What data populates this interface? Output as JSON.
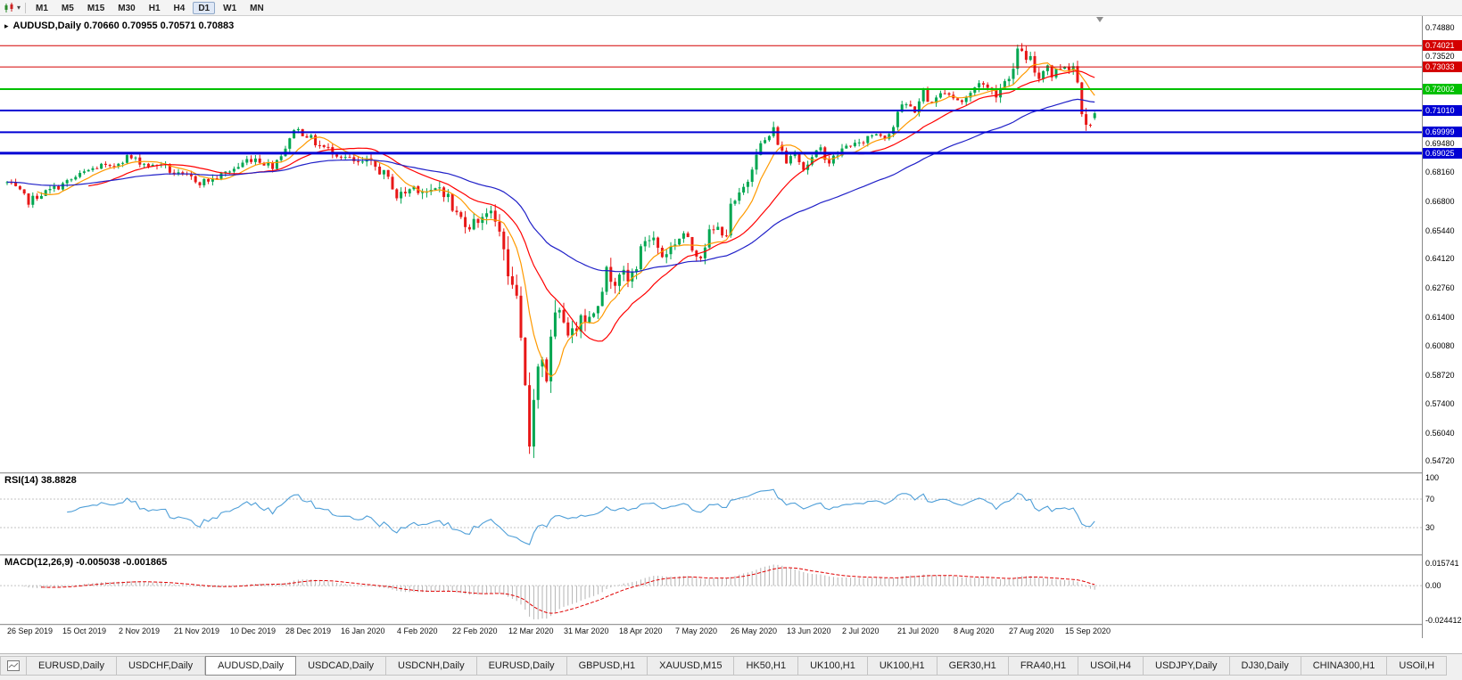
{
  "meta": {
    "colors": {
      "candle_up": "#00a650",
      "candle_down": "#e81717",
      "ma_fast": "#ff9a00",
      "ma_mid": "#ff0000",
      "ma_slow": "#2020c8",
      "rsi_line": "#4f9fd8",
      "macd_hist": "#b4b4b4",
      "macd_signal": "#e00000",
      "axis_text": "#000000"
    }
  },
  "icons": {
    "one_click_trading": "▸",
    "toolbar_caret": "▾"
  },
  "toolbar": {
    "timeframes": [
      {
        "label": "M1",
        "active": false
      },
      {
        "label": "M5",
        "active": false
      },
      {
        "label": "M15",
        "active": false
      },
      {
        "label": "M30",
        "active": false
      },
      {
        "label": "H1",
        "active": false
      },
      {
        "label": "H4",
        "active": false
      },
      {
        "label": "D1",
        "active": true
      },
      {
        "label": "W1",
        "active": false
      },
      {
        "label": "MN",
        "active": false
      }
    ]
  },
  "chart_header": {
    "text": "AUDUSD,Daily 0.70660 0.70955 0.70571 0.70883"
  },
  "price_axis": {
    "ticks": [
      {
        "label": "0.74880",
        "value": 0.7488
      },
      {
        "label": "0.73520",
        "value": 0.7352
      },
      {
        "label": "0.69480",
        "value": 0.6948
      },
      {
        "label": "0.68160",
        "value": 0.6816
      },
      {
        "label": "0.66800",
        "value": 0.668
      },
      {
        "label": "0.65440",
        "value": 0.6544
      },
      {
        "label": "0.64120",
        "value": 0.6412
      },
      {
        "label": "0.62760",
        "value": 0.6276
      },
      {
        "label": "0.61400",
        "value": 0.614
      },
      {
        "label": "0.60080",
        "value": 0.6008
      },
      {
        "label": "0.58720",
        "value": 0.5872
      },
      {
        "label": "0.57400",
        "value": 0.574
      },
      {
        "label": "0.56040",
        "value": 0.5604
      },
      {
        "label": "0.54720",
        "value": 0.5472
      }
    ]
  },
  "levels": [
    {
      "label": "0.74021",
      "price": 0.74021,
      "color": "#d40000",
      "width": 1
    },
    {
      "label": "0.73033",
      "price": 0.73033,
      "color": "#d40000",
      "width": 1
    },
    {
      "label": "0.72002",
      "price": 0.72002,
      "color": "#00c000",
      "width": 2
    },
    {
      "label": "0.71010",
      "price": 0.7101,
      "color": "#0000d4",
      "width": 2
    },
    {
      "label": "0.69999",
      "price": 0.69999,
      "color": "#0000d4",
      "width": 2
    },
    {
      "label": "0.69025",
      "price": 0.69025,
      "color": "#0000d4",
      "width": 3
    }
  ],
  "rsi": {
    "label": "RSI(14) 38.8828",
    "period": 14,
    "current": 38.8828,
    "guide_levels": [
      70,
      30
    ],
    "axis": [
      {
        "label": "100",
        "value": 100
      },
      {
        "label": "70",
        "value": 70
      },
      {
        "label": "30",
        "value": 30
      }
    ]
  },
  "macd": {
    "label": "MACD(12,26,9) -0.005038 -0.001865",
    "fast": 12,
    "slow": 26,
    "signal": 9,
    "current_macd": -0.005038,
    "current_signal": -0.001865,
    "scale_max": 0.015741,
    "scale_min": -0.024412,
    "axis": [
      {
        "label": "0.015741",
        "value": 0.015741
      },
      {
        "label": "0.00",
        "value": 0
      },
      {
        "label": "-0.024412",
        "value": -0.024412
      }
    ]
  },
  "date_axis": [
    "26 Sep 2019",
    "15 Oct 2019",
    "2 Nov 2019",
    "21 Nov 2019",
    "10 Dec 2019",
    "28 Dec 2019",
    "16 Jan 2020",
    "4 Feb 2020",
    "22 Feb 2020",
    "12 Mar 2020",
    "31 Mar 2020",
    "18 Apr 2020",
    "7 May 2020",
    "26 May 2020",
    "13 Jun 2020",
    "2 Jul 2020",
    "21 Jul 2020",
    "8 Aug 2020",
    "27 Aug 2020",
    "15 Sep 2020"
  ],
  "tabs": [
    {
      "label": "EURUSD,Daily",
      "active": false
    },
    {
      "label": "USDCHF,Daily",
      "active": false
    },
    {
      "label": "AUDUSD,Daily",
      "active": true
    },
    {
      "label": "USDCAD,Daily",
      "active": false
    },
    {
      "label": "USDCNH,Daily",
      "active": false
    },
    {
      "label": "EURUSD,Daily",
      "active": false
    },
    {
      "label": "GBPUSD,H1",
      "active": false
    },
    {
      "label": "XAUUSD,M15",
      "active": false
    },
    {
      "label": "HK50,H1",
      "active": false
    },
    {
      "label": "UK100,H1",
      "active": false
    },
    {
      "label": "UK100,H1",
      "active": false
    },
    {
      "label": "GER30,H1",
      "active": false
    },
    {
      "label": "FRA40,H1",
      "active": false
    },
    {
      "label": "USOil,H4",
      "active": false
    },
    {
      "label": "USDJPY,Daily",
      "active": false
    },
    {
      "label": "DJ30,Daily",
      "active": false
    },
    {
      "label": "CHINA300,H1",
      "active": false
    },
    {
      "label": "USOil,H",
      "active": false
    }
  ],
  "chart_data": {
    "type": "candlestick+indicators",
    "symbol": "AUDUSD",
    "timeframe": "Daily",
    "ohlc_current": {
      "open": 0.7066,
      "high": 0.70955,
      "low": 0.70571,
      "close": 0.70883
    },
    "visible_range": {
      "price_max": 0.7515,
      "price_min": 0.5445,
      "first_label": "26 Sep 2019",
      "last_label": "15 Sep 2020"
    },
    "candle_count": 255,
    "noise_seed": 7,
    "anchors": [
      [
        0,
        0.6765
      ],
      [
        2,
        0.6738
      ],
      [
        4,
        0.67
      ],
      [
        5,
        0.6678
      ],
      [
        7,
        0.6705
      ],
      [
        10,
        0.673
      ],
      [
        13,
        0.6758
      ],
      [
        16,
        0.679
      ],
      [
        19,
        0.6822
      ],
      [
        22,
        0.6845
      ],
      [
        24,
        0.683
      ],
      [
        26,
        0.6862
      ],
      [
        28,
        0.6885
      ],
      [
        30,
        0.6872
      ],
      [
        32,
        0.6855
      ],
      [
        34,
        0.684
      ],
      [
        36,
        0.6858
      ],
      [
        38,
        0.682
      ],
      [
        40,
        0.68
      ],
      [
        43,
        0.6788
      ],
      [
        45,
        0.6768
      ],
      [
        48,
        0.6782
      ],
      [
        50,
        0.68
      ],
      [
        52,
        0.6822
      ],
      [
        54,
        0.684
      ],
      [
        56,
        0.6872
      ],
      [
        58,
        0.688
      ],
      [
        60,
        0.6858
      ],
      [
        62,
        0.6845
      ],
      [
        64,
        0.69
      ],
      [
        66,
        0.696
      ],
      [
        67,
        0.7022
      ],
      [
        68,
        0.7008
      ],
      [
        70,
        0.6988
      ],
      [
        72,
        0.695
      ],
      [
        74,
        0.6928
      ],
      [
        76,
        0.6912
      ],
      [
        78,
        0.6895
      ],
      [
        80,
        0.687
      ],
      [
        82,
        0.685
      ],
      [
        84,
        0.6862
      ],
      [
        86,
        0.6838
      ],
      [
        88,
        0.6805
      ],
      [
        90,
        0.6752
      ],
      [
        91,
        0.67
      ],
      [
        93,
        0.6722
      ],
      [
        95,
        0.6748
      ],
      [
        97,
        0.6732
      ],
      [
        99,
        0.6712
      ],
      [
        101,
        0.6745
      ],
      [
        103,
        0.67
      ],
      [
        104,
        0.664
      ],
      [
        106,
        0.66
      ],
      [
        108,
        0.657
      ],
      [
        110,
        0.6595
      ],
      [
        112,
        0.6638
      ],
      [
        114,
        0.658
      ],
      [
        116,
        0.649
      ],
      [
        117,
        0.6295
      ],
      [
        118,
        0.633
      ],
      [
        119,
        0.618
      ],
      [
        120,
        0.5985
      ],
      [
        121,
        0.579
      ],
      [
        122,
        0.556
      ],
      [
        123,
        0.581
      ],
      [
        124,
        0.5905
      ],
      [
        125,
        0.596
      ],
      [
        126,
        0.5865
      ],
      [
        127,
        0.6015
      ],
      [
        128,
        0.6125
      ],
      [
        130,
        0.6135
      ],
      [
        132,
        0.605
      ],
      [
        134,
        0.6175
      ],
      [
        136,
        0.613
      ],
      [
        138,
        0.623
      ],
      [
        140,
        0.6345
      ],
      [
        142,
        0.632
      ],
      [
        143,
        0.636
      ],
      [
        145,
        0.63
      ],
      [
        147,
        0.6385
      ],
      [
        149,
        0.6505
      ],
      [
        151,
        0.6505
      ],
      [
        153,
        0.6425
      ],
      [
        155,
        0.6465
      ],
      [
        156,
        0.649
      ],
      [
        158,
        0.653
      ],
      [
        160,
        0.6455
      ],
      [
        162,
        0.643
      ],
      [
        164,
        0.653
      ],
      [
        166,
        0.6552
      ],
      [
        168,
        0.6532
      ],
      [
        169,
        0.6648
      ],
      [
        171,
        0.67
      ],
      [
        173,
        0.678
      ],
      [
        175,
        0.6918
      ],
      [
        177,
        0.6958
      ],
      [
        179,
        0.7008
      ],
      [
        181,
        0.6905
      ],
      [
        182,
        0.6862
      ],
      [
        184,
        0.6918
      ],
      [
        186,
        0.6832
      ],
      [
        188,
        0.6878
      ],
      [
        190,
        0.692
      ],
      [
        192,
        0.6862
      ],
      [
        194,
        0.6898
      ],
      [
        195,
        0.6918
      ],
      [
        197,
        0.6948
      ],
      [
        199,
        0.6938
      ],
      [
        201,
        0.6978
      ],
      [
        203,
        0.6998
      ],
      [
        205,
        0.6982
      ],
      [
        207,
        0.7028
      ],
      [
        208,
        0.7098
      ],
      [
        210,
        0.7128
      ],
      [
        212,
        0.7102
      ],
      [
        214,
        0.7188
      ],
      [
        215,
        0.7142
      ],
      [
        217,
        0.7152
      ],
      [
        219,
        0.7198
      ],
      [
        221,
        0.7162
      ],
      [
        223,
        0.7142
      ],
      [
        225,
        0.7178
      ],
      [
        227,
        0.7238
      ],
      [
        229,
        0.7202
      ],
      [
        231,
        0.7182
      ],
      [
        233,
        0.7238
      ],
      [
        234,
        0.7268
      ],
      [
        235,
        0.7288
      ],
      [
        236,
        0.7368
      ],
      [
        237,
        0.7392
      ],
      [
        238,
        0.7322
      ],
      [
        239,
        0.7338
      ],
      [
        240,
        0.7282
      ],
      [
        241,
        0.7252
      ],
      [
        242,
        0.7298
      ],
      [
        243,
        0.7312
      ],
      [
        244,
        0.7262
      ],
      [
        245,
        0.7288
      ],
      [
        246,
        0.7302
      ],
      [
        247,
        0.7312
      ],
      [
        248,
        0.7302
      ],
      [
        249,
        0.7312
      ],
      [
        250,
        0.7232
      ],
      [
        251,
        0.7112
      ],
      [
        252,
        0.7058
      ],
      [
        253,
        0.7042
      ],
      [
        254,
        0.7088
      ]
    ],
    "volatility_anchors": [
      [
        0,
        0.0035
      ],
      [
        60,
        0.0035
      ],
      [
        90,
        0.0048
      ],
      [
        104,
        0.0055
      ],
      [
        114,
        0.0065
      ],
      [
        117,
        0.011
      ],
      [
        120,
        0.015
      ],
      [
        123,
        0.016
      ],
      [
        126,
        0.012
      ],
      [
        132,
        0.0095
      ],
      [
        140,
        0.008
      ],
      [
        150,
        0.0062
      ],
      [
        160,
        0.005
      ],
      [
        175,
        0.0055
      ],
      [
        185,
        0.0045
      ],
      [
        200,
        0.0038
      ],
      [
        225,
        0.0042
      ],
      [
        236,
        0.0055
      ],
      [
        244,
        0.004
      ],
      [
        249,
        0.0045
      ],
      [
        251,
        0.007
      ],
      [
        254,
        0.003
      ]
    ],
    "overrides": {
      "122": {
        "low": 0.5506
      },
      "237": {
        "high": 0.7414
      },
      "254": {
        "open": 0.7066,
        "high": 0.70955,
        "low": 0.70571,
        "close": 0.70883
      }
    },
    "moving_averages": [
      {
        "period": 8,
        "type": "sma",
        "color_key": "ma_fast"
      },
      {
        "period": 20,
        "type": "sma",
        "color_key": "ma_mid"
      },
      {
        "period": 55,
        "type": "ema",
        "color_key": "ma_slow"
      }
    ]
  }
}
